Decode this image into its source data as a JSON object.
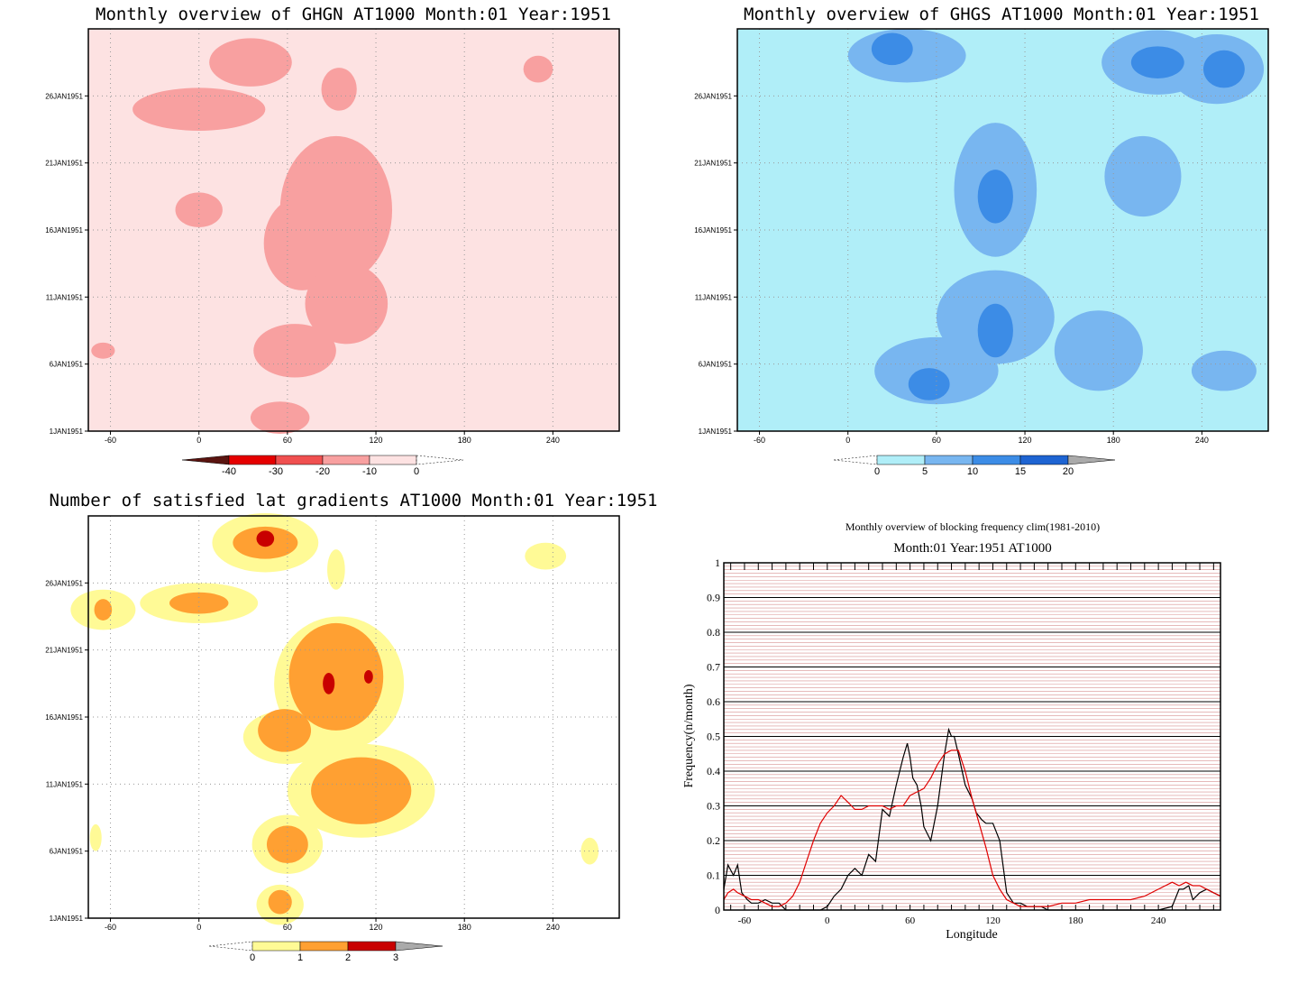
{
  "panels": {
    "ghgn": {
      "title": "Monthly overview of GHGN AT1000 Month:01 Year:1951",
      "xlim": [
        -75,
        285
      ],
      "ylim": [
        1,
        31
      ],
      "x_ticks": [
        "-60",
        "0",
        "60",
        "120",
        "180",
        "240"
      ],
      "y_ticks": [
        "26JAN1951",
        "21JAN1951",
        "16JAN1951",
        "11JAN1951",
        "6JAN1951",
        "1JAN1951"
      ],
      "colorbar": {
        "labels": [
          "-40",
          "-30",
          "-20",
          "-10",
          "0"
        ],
        "colors": [
          "#5a1410",
          "#e50000",
          "#f05050",
          "#f8a0a0",
          "#fde2e2"
        ]
      }
    },
    "ghgs": {
      "title": "Monthly overview of GHGS AT1000 Month:01 Year:1951",
      "xlim": [
        -75,
        285
      ],
      "ylim": [
        1,
        31
      ],
      "x_ticks": [
        "-60",
        "0",
        "60",
        "120",
        "180",
        "240"
      ],
      "y_ticks": [
        "26JAN1951",
        "21JAN1951",
        "16JAN1951",
        "11JAN1951",
        "6JAN1951",
        "1JAN1951"
      ],
      "colorbar": {
        "labels": [
          "0",
          "5",
          "10",
          "15",
          "20"
        ],
        "colors": [
          "#b0eef8",
          "#78b6f0",
          "#3c8ce6",
          "#1e64d2",
          "#aaaaaa"
        ]
      }
    },
    "gradients": {
      "title": "Number of satisfied lat gradients AT1000 Month:01 Year:1951",
      "xlim": [
        -75,
        285
      ],
      "ylim": [
        1,
        31
      ],
      "x_ticks": [
        "-60",
        "0",
        "60",
        "120",
        "180",
        "240"
      ],
      "y_ticks": [
        "26JAN1951",
        "21JAN1951",
        "16JAN1951",
        "11JAN1951",
        "6JAN1951",
        "1JAN1951"
      ],
      "colorbar": {
        "labels": [
          "0",
          "1",
          "2",
          "3"
        ],
        "colors": [
          "#fffa96",
          "#ffa032",
          "#c80000",
          "#aaaaaa"
        ]
      }
    }
  },
  "chart_data": [
    {
      "type": "heatmap",
      "title": "Monthly overview of GHGN AT1000 Month:01 Year:1951",
      "xlim": [
        -75,
        285
      ],
      "ylim": [
        1,
        31
      ],
      "levels": [
        -40,
        -30,
        -20,
        -10,
        0
      ],
      "palette": [
        "#fde2e2",
        "#f8a0a0",
        "#f05050",
        "#e50000",
        "#5a1410"
      ],
      "regions": [
        {
          "level": 1,
          "lon": 93,
          "day": 17.5,
          "dlon": 38,
          "dday": 5.5
        },
        {
          "level": 1,
          "lon": 70,
          "day": 15.0,
          "dlon": 26,
          "dday": 3.5
        },
        {
          "level": 1,
          "lon": 100,
          "day": 10.5,
          "dlon": 28,
          "dday": 3.0
        },
        {
          "level": 1,
          "lon": 0,
          "day": 25.0,
          "dlon": 45,
          "dday": 1.6
        },
        {
          "level": 1,
          "lon": 35,
          "day": 28.5,
          "dlon": 28,
          "dday": 1.8
        },
        {
          "level": 1,
          "lon": 95,
          "day": 26.5,
          "dlon": 12,
          "dday": 1.6
        },
        {
          "level": 1,
          "lon": 0,
          "day": 17.5,
          "dlon": 16,
          "dday": 1.3
        },
        {
          "level": 1,
          "lon": 65,
          "day": 7.0,
          "dlon": 28,
          "dday": 2.0
        },
        {
          "level": 1,
          "lon": 55,
          "day": 2.0,
          "dlon": 20,
          "dday": 1.2
        },
        {
          "level": 1,
          "lon": 230,
          "day": 28.0,
          "dlon": 10,
          "dday": 1.0
        },
        {
          "level": 1,
          "lon": -65,
          "day": 7.0,
          "dlon": 8,
          "dday": 0.6
        }
      ]
    },
    {
      "type": "heatmap",
      "title": "Monthly overview of GHGS AT1000 Month:01 Year:1951",
      "xlim": [
        -75,
        285
      ],
      "ylim": [
        1,
        31
      ],
      "levels": [
        0,
        5,
        10,
        15,
        20
      ],
      "palette": [
        "#b0eef8",
        "#78b6f0",
        "#3c8ce6",
        "#1e64d2",
        "#aaaaaa"
      ],
      "regions": [
        {
          "level": 1,
          "lon": 40,
          "day": 29.0,
          "dlon": 40,
          "dday": 2.0
        },
        {
          "level": 1,
          "lon": 210,
          "day": 28.5,
          "dlon": 38,
          "dday": 2.4
        },
        {
          "level": 1,
          "lon": 250,
          "day": 28.0,
          "dlon": 32,
          "dday": 2.6
        },
        {
          "level": 1,
          "lon": 100,
          "day": 19.0,
          "dlon": 28,
          "dday": 5.0
        },
        {
          "level": 1,
          "lon": 200,
          "day": 20.0,
          "dlon": 26,
          "dday": 3.0
        },
        {
          "level": 1,
          "lon": 100,
          "day": 9.5,
          "dlon": 40,
          "dday": 3.5
        },
        {
          "level": 1,
          "lon": 60,
          "day": 5.5,
          "dlon": 42,
          "dday": 2.5
        },
        {
          "level": 1,
          "lon": 170,
          "day": 7.0,
          "dlon": 30,
          "dday": 3.0
        },
        {
          "level": 1,
          "lon": 255,
          "day": 5.5,
          "dlon": 22,
          "dday": 1.5
        },
        {
          "level": 2,
          "lon": 30,
          "day": 29.5,
          "dlon": 14,
          "dday": 1.2
        },
        {
          "level": 2,
          "lon": 210,
          "day": 28.5,
          "dlon": 18,
          "dday": 1.2
        },
        {
          "level": 2,
          "lon": 255,
          "day": 28.0,
          "dlon": 14,
          "dday": 1.4
        },
        {
          "level": 2,
          "lon": 100,
          "day": 18.5,
          "dlon": 12,
          "dday": 2.0
        },
        {
          "level": 2,
          "lon": 100,
          "day": 8.5,
          "dlon": 12,
          "dday": 2.0
        },
        {
          "level": 2,
          "lon": 55,
          "day": 4.5,
          "dlon": 14,
          "dday": 1.2
        }
      ]
    },
    {
      "type": "heatmap",
      "title": "Number of satisfied lat gradients AT1000 Month:01 Year:1951",
      "xlim": [
        -75,
        285
      ],
      "ylim": [
        1,
        31
      ],
      "levels": [
        0,
        1,
        2,
        3
      ],
      "palette": [
        "#fffa96",
        "#ffa032",
        "#c80000",
        "#aaaaaa"
      ],
      "regions": [
        {
          "level": 0,
          "lon": 45,
          "day": 29.0,
          "dlon": 36,
          "dday": 2.2
        },
        {
          "level": 0,
          "lon": 0,
          "day": 24.5,
          "dlon": 40,
          "dday": 1.5
        },
        {
          "level": 0,
          "lon": -65,
          "day": 24.0,
          "dlon": 22,
          "dday": 1.5
        },
        {
          "level": 0,
          "lon": 95,
          "day": 18.5,
          "dlon": 44,
          "dday": 5.0
        },
        {
          "level": 0,
          "lon": 110,
          "day": 10.5,
          "dlon": 50,
          "dday": 3.5
        },
        {
          "level": 0,
          "lon": 60,
          "day": 14.5,
          "dlon": 30,
          "dday": 2.0
        },
        {
          "level": 0,
          "lon": 60,
          "day": 6.5,
          "dlon": 24,
          "dday": 2.2
        },
        {
          "level": 0,
          "lon": 55,
          "day": 2.0,
          "dlon": 16,
          "dday": 1.5
        },
        {
          "level": 0,
          "lon": 235,
          "day": 28.0,
          "dlon": 14,
          "dday": 1.0
        },
        {
          "level": 0,
          "lon": 93,
          "day": 27.0,
          "dlon": 6,
          "dday": 1.5
        },
        {
          "level": 0,
          "lon": -70,
          "day": 7.0,
          "dlon": 4,
          "dday": 1.0
        },
        {
          "level": 0,
          "lon": 265,
          "day": 6.0,
          "dlon": 6,
          "dday": 1.0
        },
        {
          "level": 1,
          "lon": 45,
          "day": 29.0,
          "dlon": 22,
          "dday": 1.2
        },
        {
          "level": 1,
          "lon": 0,
          "day": 24.5,
          "dlon": 20,
          "dday": 0.8
        },
        {
          "level": 1,
          "lon": -65,
          "day": 24.0,
          "dlon": 6,
          "dday": 0.8
        },
        {
          "level": 1,
          "lon": 93,
          "day": 19.0,
          "dlon": 32,
          "dday": 4.0
        },
        {
          "level": 1,
          "lon": 58,
          "day": 15.0,
          "dlon": 18,
          "dday": 1.6
        },
        {
          "level": 1,
          "lon": 110,
          "day": 10.5,
          "dlon": 34,
          "dday": 2.5
        },
        {
          "level": 1,
          "lon": 60,
          "day": 6.5,
          "dlon": 14,
          "dday": 1.4
        },
        {
          "level": 1,
          "lon": 55,
          "day": 2.2,
          "dlon": 8,
          "dday": 0.9
        },
        {
          "level": 2,
          "lon": 45,
          "day": 29.3,
          "dlon": 6,
          "dday": 0.6
        },
        {
          "level": 2,
          "lon": 88,
          "day": 18.5,
          "dlon": 4,
          "dday": 0.8
        },
        {
          "level": 2,
          "lon": 115,
          "day": 19.0,
          "dlon": 3,
          "dday": 0.5
        }
      ]
    },
    {
      "type": "line",
      "title": "Monthly overview of blocking frequency clim(1981-2010)",
      "subtitle": "Month:01 Year:1951  AT1000",
      "xlabel": "Longitude",
      "ylabel": "Frequency(n/month)",
      "xlim": [
        -75,
        285
      ],
      "ylim": [
        0,
        1
      ],
      "x_ticks": [
        "-60",
        "0",
        "60",
        "120",
        "180",
        "240"
      ],
      "y_ticks": [
        "0",
        "0.1",
        "0.2",
        "0.3",
        "0.4",
        "0.5",
        "0.6",
        "0.7",
        "0.8",
        "0.9",
        "1"
      ],
      "series": [
        {
          "color": "#000000",
          "x": [
            -75,
            -72,
            -68,
            -65,
            -62,
            -58,
            -55,
            -50,
            -45,
            -40,
            -35,
            -30,
            -25,
            -20,
            -15,
            -10,
            -5,
            0,
            5,
            10,
            15,
            20,
            25,
            30,
            35,
            40,
            45,
            50,
            55,
            58,
            60,
            62,
            65,
            68,
            70,
            75,
            80,
            85,
            88,
            90,
            92,
            95,
            100,
            105,
            108,
            112,
            115,
            120,
            125,
            130,
            135,
            140,
            145,
            150,
            155,
            160,
            165,
            170,
            175,
            180,
            190,
            200,
            210,
            220,
            230,
            240,
            250,
            255,
            258,
            262,
            265,
            270,
            275,
            280,
            285
          ],
          "y": [
            0.06,
            0.13,
            0.1,
            0.13,
            0.05,
            0.03,
            0.02,
            0.02,
            0.03,
            0.02,
            0.02,
            0.0,
            0.0,
            0.0,
            0.0,
            0.0,
            0.0,
            0.01,
            0.04,
            0.06,
            0.1,
            0.12,
            0.1,
            0.16,
            0.14,
            0.29,
            0.27,
            0.36,
            0.44,
            0.48,
            0.44,
            0.38,
            0.36,
            0.3,
            0.24,
            0.2,
            0.3,
            0.45,
            0.52,
            0.5,
            0.5,
            0.45,
            0.36,
            0.32,
            0.28,
            0.26,
            0.25,
            0.25,
            0.2,
            0.05,
            0.02,
            0.02,
            0.01,
            0.01,
            0.01,
            0.0,
            0.0,
            0.0,
            0.0,
            0.0,
            0.0,
            0.0,
            0.0,
            0.0,
            0.0,
            0.0,
            0.01,
            0.06,
            0.06,
            0.07,
            0.03,
            0.05,
            0.06,
            0.05,
            0.04
          ]
        },
        {
          "color": "#e00000",
          "x": [
            -75,
            -72,
            -68,
            -65,
            -60,
            -55,
            -50,
            -45,
            -40,
            -35,
            -30,
            -25,
            -20,
            -15,
            -10,
            -5,
            0,
            5,
            10,
            15,
            20,
            25,
            30,
            35,
            40,
            45,
            50,
            55,
            60,
            65,
            70,
            75,
            80,
            85,
            90,
            95,
            100,
            105,
            110,
            115,
            120,
            125,
            130,
            135,
            140,
            150,
            160,
            170,
            180,
            190,
            200,
            210,
            220,
            230,
            240,
            250,
            255,
            260,
            265,
            270,
            275,
            280,
            285
          ],
          "y": [
            0.03,
            0.05,
            0.06,
            0.05,
            0.04,
            0.03,
            0.03,
            0.02,
            0.01,
            0.01,
            0.02,
            0.04,
            0.08,
            0.14,
            0.2,
            0.25,
            0.28,
            0.3,
            0.33,
            0.31,
            0.29,
            0.29,
            0.3,
            0.3,
            0.3,
            0.29,
            0.3,
            0.3,
            0.33,
            0.34,
            0.35,
            0.38,
            0.42,
            0.45,
            0.46,
            0.46,
            0.4,
            0.32,
            0.25,
            0.18,
            0.1,
            0.06,
            0.03,
            0.02,
            0.01,
            0.01,
            0.01,
            0.02,
            0.02,
            0.03,
            0.03,
            0.03,
            0.03,
            0.04,
            0.06,
            0.08,
            0.07,
            0.08,
            0.07,
            0.07,
            0.06,
            0.05,
            0.04
          ]
        }
      ]
    }
  ]
}
